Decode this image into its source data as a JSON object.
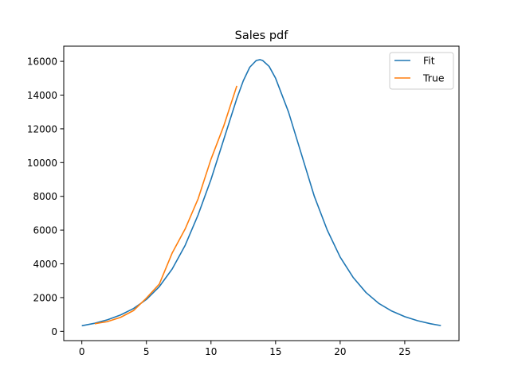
{
  "chart_data": {
    "type": "line",
    "title": "Sales pdf",
    "xlabel": "",
    "ylabel": "",
    "xlim": [
      -1.4,
      29.2
    ],
    "ylim": [
      -550,
      16900
    ],
    "xticks": [
      0,
      5,
      10,
      15,
      20,
      25
    ],
    "yticks": [
      0,
      2000,
      4000,
      6000,
      8000,
      10000,
      12000,
      14000,
      16000
    ],
    "grid": false,
    "legend": "top-right",
    "series": [
      {
        "name": "Fit",
        "color": "#1f77b4",
        "x": [
          0,
          1,
          2,
          3,
          4,
          5,
          6,
          7,
          8,
          9,
          10,
          11,
          12,
          12.5,
          13,
          13.5,
          13.8,
          14,
          14.5,
          15,
          16,
          17,
          18,
          19,
          20,
          21,
          22,
          23,
          24,
          25,
          26,
          27,
          27.8
        ],
        "y": [
          330,
          480,
          690,
          970,
          1350,
          1890,
          2650,
          3700,
          5100,
          6900,
          9000,
          11400,
          13800,
          14850,
          15650,
          16050,
          16100,
          16050,
          15700,
          15000,
          13000,
          10500,
          8000,
          6000,
          4400,
          3200,
          2300,
          1650,
          1200,
          870,
          630,
          450,
          340
        ]
      },
      {
        "name": "True",
        "color": "#ff7f0e",
        "x": [
          1,
          2,
          3,
          4,
          5,
          6,
          7,
          8,
          9,
          10,
          11,
          12
        ],
        "y": [
          450,
          580,
          830,
          1230,
          1970,
          2800,
          4650,
          6070,
          7850,
          10200,
          12200,
          14550
        ]
      }
    ]
  }
}
